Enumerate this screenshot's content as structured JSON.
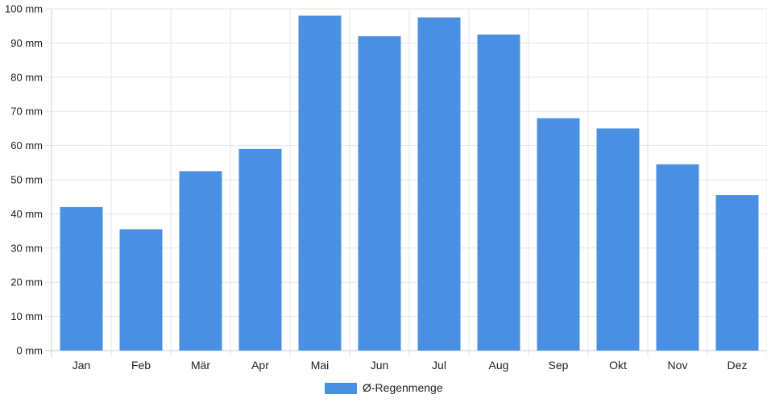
{
  "chart_data": {
    "type": "bar",
    "categories": [
      "Jan",
      "Feb",
      "Mär",
      "Apr",
      "Mai",
      "Jun",
      "Jul",
      "Aug",
      "Sep",
      "Okt",
      "Nov",
      "Dez"
    ],
    "series": [
      {
        "name": "Ø-Regenmenge",
        "values": [
          42,
          35.5,
          52.5,
          59,
          98,
          92,
          97.5,
          92.5,
          68,
          65,
          54.5,
          45.5
        ]
      }
    ],
    "y_ticks": [
      "0 mm",
      "10 mm",
      "20 mm",
      "30 mm",
      "40 mm",
      "50 mm",
      "60 mm",
      "70 mm",
      "80 mm",
      "90 mm",
      "100 mm"
    ],
    "ylim": [
      0,
      100
    ],
    "grid": true,
    "legend_position": "bottom",
    "colors": {
      "bar": "#4a90e2",
      "grid": "#e5e5e5",
      "axis": "#cccccc",
      "text": "#222222"
    }
  }
}
